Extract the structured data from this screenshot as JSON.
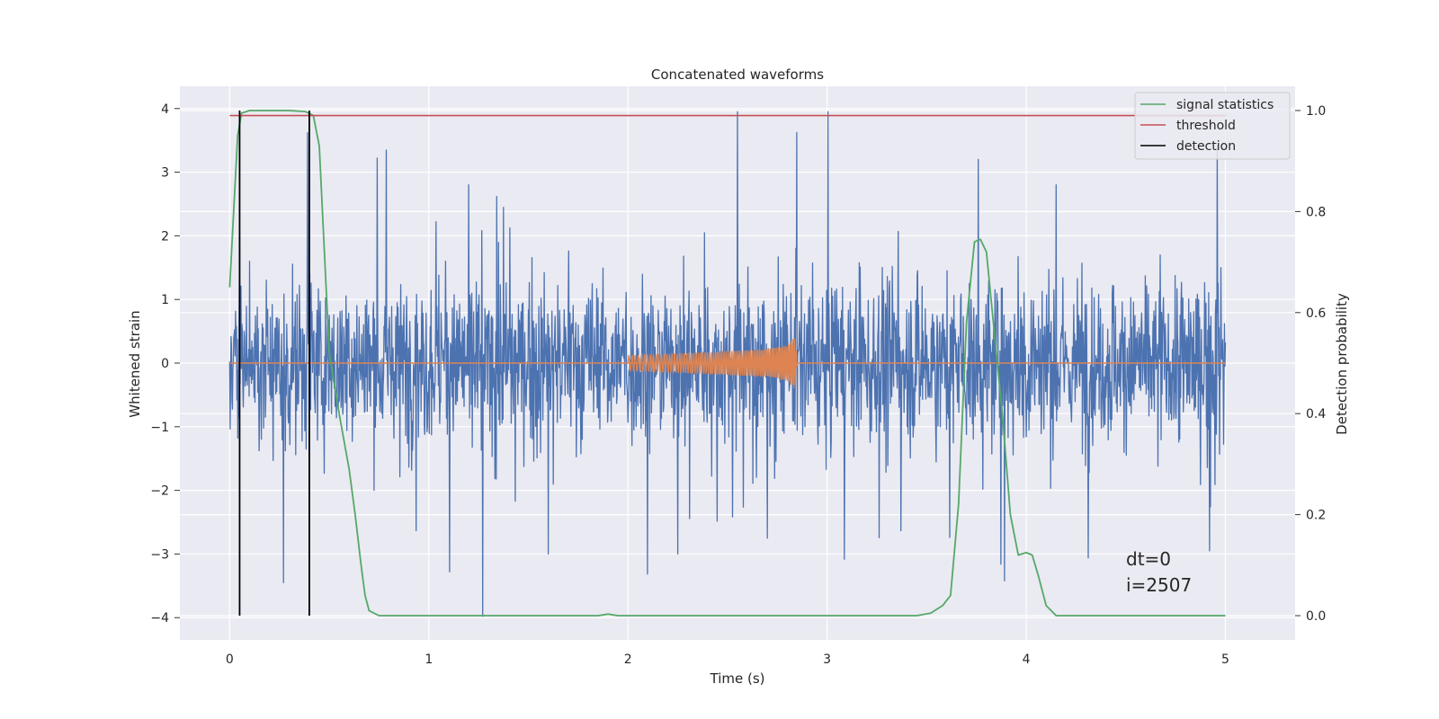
{
  "chart_data": {
    "type": "line",
    "title": "Concatenated waveforms",
    "xlabel": "Time (s)",
    "ylabel": "Whitened strain",
    "y2label": "Detection probability",
    "xlim": [
      -0.25,
      5.35
    ],
    "ylim": [
      -4.35,
      4.35
    ],
    "y2lim": [
      -0.048,
      1.048
    ],
    "xticks": [
      0,
      1,
      2,
      3,
      4,
      5
    ],
    "yticks": [
      -4,
      -3,
      -2,
      -1,
      0,
      1,
      2,
      3,
      4
    ],
    "y2ticks": [
      0.0,
      0.2,
      0.4,
      0.6,
      0.8,
      1.0
    ],
    "xtick_labels": [
      "0",
      "1",
      "2",
      "3",
      "4",
      "5"
    ],
    "ytick_labels": [
      "−4",
      "−3",
      "−2",
      "−1",
      "0",
      "1",
      "2",
      "3",
      "4"
    ],
    "y2tick_labels": [
      "0.0",
      "0.2",
      "0.4",
      "0.6",
      "0.8",
      "1.0"
    ],
    "grid": true,
    "legend_position": "top-right",
    "legend": [
      "signal statistics",
      "threshold",
      "detection"
    ],
    "colors": {
      "strain": "#4c72b0",
      "injected_signal": "#dd8452",
      "signal_statistics": "#55a868",
      "threshold": "#c44e52",
      "detection": "#000000",
      "plot_background": "#eaeaf2",
      "grid": "#ffffff"
    },
    "series": [
      {
        "key": "strain",
        "axis": "left",
        "x_range": [
          0,
          5
        ],
        "amplitude_rms": 0.55,
        "y_min": -4.0,
        "y_max": 3.95,
        "spikes": [
          {
            "x": 0.27,
            "y": -3.45
          },
          {
            "x": 0.39,
            "y": 3.62
          },
          {
            "x": 0.05,
            "y": 2.0
          },
          {
            "x": 1.27,
            "y": -3.98
          },
          {
            "x": 2.55,
            "y": 3.95
          },
          {
            "x": 3.76,
            "y": 3.2
          },
          {
            "x": 3.89,
            "y": -3.42
          },
          {
            "x": 4.96,
            "y": 3.42
          },
          {
            "x": 4.92,
            "y": -2.95
          },
          {
            "x": 1.6,
            "y": -3.0
          },
          {
            "x": 2.25,
            "y": -3.0
          },
          {
            "x": 1.2,
            "y": 2.8
          },
          {
            "x": 2.7,
            "y": -2.75
          },
          {
            "x": 4.15,
            "y": 2.8
          },
          {
            "x": 0.1,
            "y": 1.6
          }
        ]
      },
      {
        "key": "injected_signal",
        "axis": "left",
        "x_range": [
          2.0,
          2.85
        ],
        "envelope": [
          [
            2.0,
            0.12
          ],
          [
            2.4,
            0.17
          ],
          [
            2.7,
            0.22
          ],
          [
            2.8,
            0.28
          ],
          [
            2.84,
            0.42
          ],
          [
            2.85,
            0.0
          ]
        ]
      },
      {
        "name": "signal statistics",
        "key": "signal_statistics",
        "axis": "right",
        "points": [
          [
            0.0,
            0.65
          ],
          [
            0.02,
            0.8
          ],
          [
            0.04,
            0.95
          ],
          [
            0.06,
            0.995
          ],
          [
            0.1,
            1.0
          ],
          [
            0.3,
            1.0
          ],
          [
            0.38,
            0.998
          ],
          [
            0.42,
            0.99
          ],
          [
            0.45,
            0.93
          ],
          [
            0.5,
            0.52
          ],
          [
            0.55,
            0.4
          ],
          [
            0.6,
            0.29
          ],
          [
            0.63,
            0.2
          ],
          [
            0.66,
            0.1
          ],
          [
            0.68,
            0.04
          ],
          [
            0.7,
            0.01
          ],
          [
            0.75,
            0.0
          ],
          [
            1.0,
            0.0
          ],
          [
            1.5,
            0.0
          ],
          [
            1.85,
            0.0
          ],
          [
            1.9,
            0.003
          ],
          [
            1.95,
            0.0
          ],
          [
            2.5,
            0.0
          ],
          [
            3.45,
            0.0
          ],
          [
            3.52,
            0.005
          ],
          [
            3.58,
            0.02
          ],
          [
            3.62,
            0.04
          ],
          [
            3.66,
            0.22
          ],
          [
            3.7,
            0.58
          ],
          [
            3.74,
            0.74
          ],
          [
            3.77,
            0.745
          ],
          [
            3.8,
            0.72
          ],
          [
            3.84,
            0.56
          ],
          [
            3.88,
            0.4
          ],
          [
            3.92,
            0.2
          ],
          [
            3.96,
            0.12
          ],
          [
            4.0,
            0.125
          ],
          [
            4.03,
            0.12
          ],
          [
            4.06,
            0.08
          ],
          [
            4.1,
            0.02
          ],
          [
            4.15,
            0.0
          ],
          [
            5.0,
            0.0
          ]
        ]
      },
      {
        "name": "threshold",
        "key": "threshold",
        "axis": "right",
        "y": 0.99,
        "x_range": [
          0,
          5
        ]
      },
      {
        "name": "detection",
        "key": "detection",
        "axis": "right",
        "x": [
          0.05,
          0.4
        ],
        "y_range": [
          0.0,
          1.0
        ]
      }
    ],
    "annotations": [
      "dt=0",
      "i=2507"
    ]
  }
}
